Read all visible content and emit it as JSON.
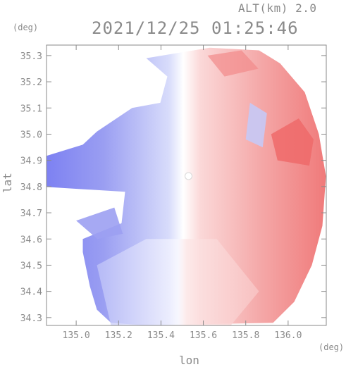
{
  "header": {
    "altitude_label": "ALT(km) 2.0",
    "timestamp": "2021/12/25 01:25:46",
    "y_unit": "(deg)",
    "x_unit": "(deg)"
  },
  "chart_data": {
    "type": "heatmap",
    "title": "2021/12/25 01:25:46",
    "subtitle": "ALT(km) 2.0",
    "xlabel": "lon",
    "ylabel": "lat",
    "x_unit": "(deg)",
    "y_unit": "(deg)",
    "xlim": [
      134.86,
      136.18
    ],
    "ylim": [
      34.27,
      35.34
    ],
    "x_ticks": [
      135.0,
      135.2,
      135.4,
      135.6,
      135.8,
      136.0
    ],
    "x_tick_labels": [
      "135.0",
      "135.2",
      "135.4",
      "135.6",
      "135.8",
      "136.0"
    ],
    "y_ticks": [
      34.3,
      34.4,
      34.5,
      34.6,
      34.7,
      34.8,
      34.9,
      35.0,
      35.1,
      35.2,
      35.3
    ],
    "y_tick_labels": [
      "34.3",
      "34.4",
      "34.5",
      "34.6",
      "34.7",
      "34.8",
      "34.9",
      "35.0",
      "35.1",
      "35.2",
      "35.3"
    ],
    "grid": false,
    "radar_center": [
      135.53,
      34.84
    ],
    "colors": {
      "negative": "#7070f0",
      "positive": "#f05050",
      "zero": "#ffffff"
    }
  }
}
